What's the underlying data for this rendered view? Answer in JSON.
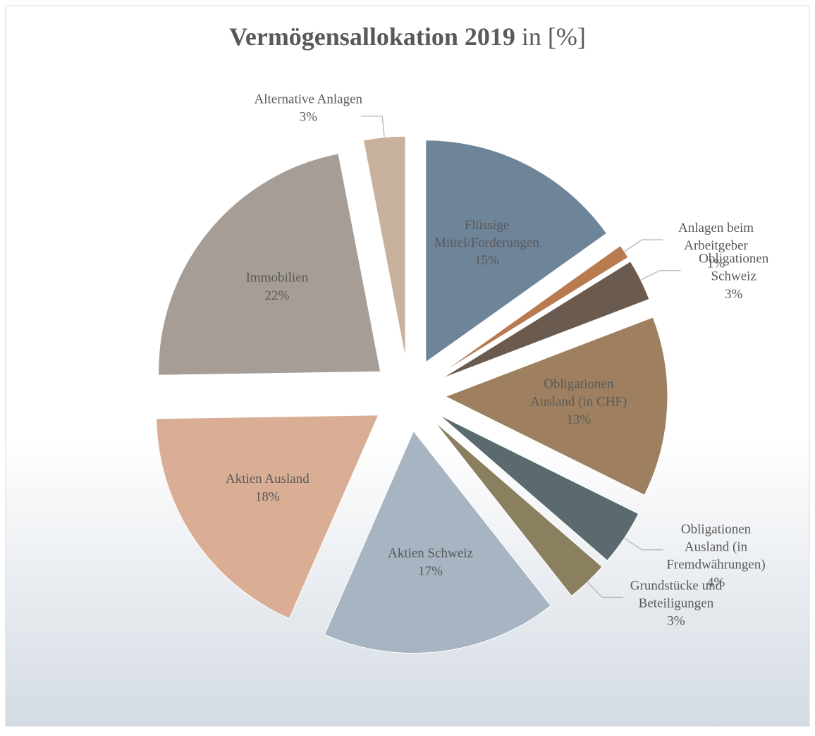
{
  "chart_data": {
    "type": "pie",
    "title": "Vermögensallokation 2019",
    "subtitle": "in [%]",
    "categories": [
      "Flüssige Mittel/Forderungen",
      "Anlagen beim Arbeitgeber",
      "Obligationen Schweiz",
      "Obligationen Ausland (in CHF)",
      "Obligationen Ausland (in Fremdwährungen)",
      "Grundstücke und Beteiligungen",
      "Aktien Schweiz",
      "Aktien Ausland",
      "Immobilien",
      "Alternative Anlagen"
    ],
    "values": [
      15,
      1,
      3,
      13,
      4,
      3,
      17,
      18,
      22,
      3
    ],
    "value_labels": [
      "15%",
      "1%",
      "3%",
      "13%",
      "4%",
      "3%",
      "17%",
      "18%",
      "22%",
      "3%"
    ],
    "colors": [
      "#6e8499",
      "#b87a4f",
      "#6b5a4e",
      "#9e8060",
      "#5a6a6e",
      "#8a8060",
      "#a7b4c1",
      "#d9ae94",
      "#a69d96",
      "#c8b29e"
    ]
  }
}
